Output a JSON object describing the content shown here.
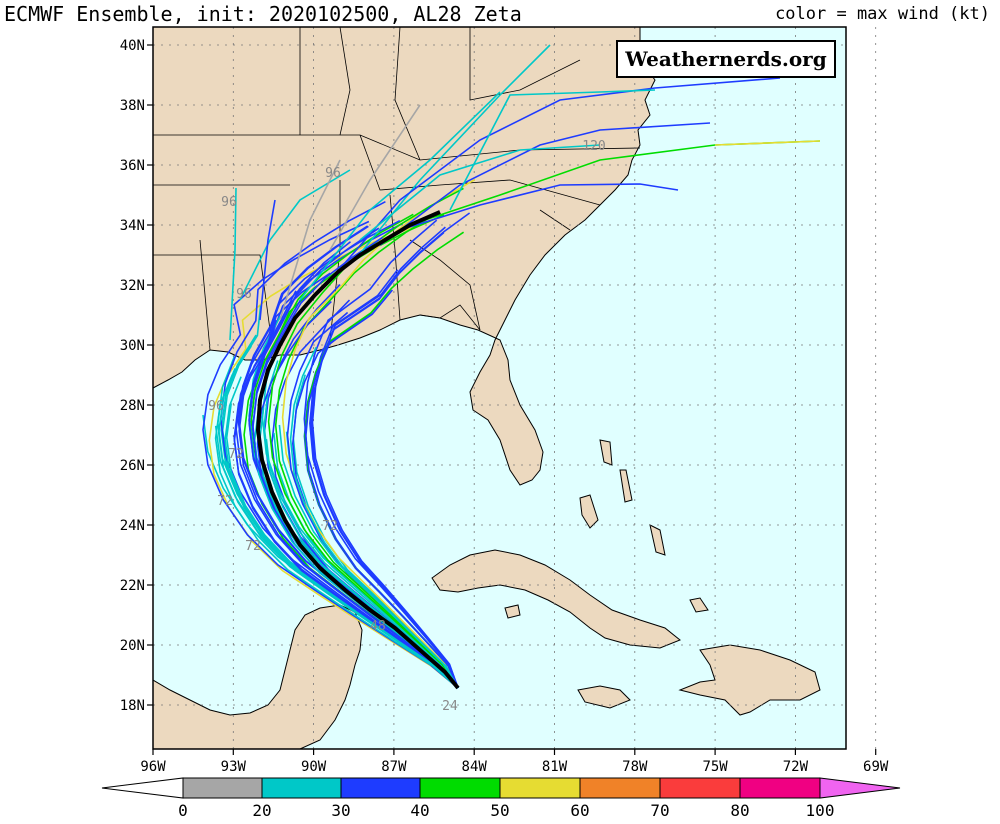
{
  "header": {
    "title": "ECMWF Ensemble, init: 2020102500, AL28 Zeta",
    "legend_note": "color = max wind (kt)"
  },
  "watermark": "Weathernerds.org",
  "map": {
    "lat_labels": [
      "40N",
      "38N",
      "36N",
      "34N",
      "32N",
      "30N",
      "28N",
      "26N",
      "24N",
      "22N",
      "20N",
      "18N"
    ],
    "lon_labels": [
      "96W",
      "93W",
      "90W",
      "87W",
      "84W",
      "81W",
      "78W",
      "75W",
      "72W",
      "69W"
    ],
    "land_color": "#ecd9bf",
    "ocean_color": "#e0ffff",
    "hour_markers": [
      "120",
      "96",
      "96",
      "96",
      "96",
      "72",
      "72",
      "72",
      "72",
      "48",
      "24"
    ]
  },
  "colorbar": {
    "labels": [
      "0",
      "20",
      "30",
      "40",
      "50",
      "60",
      "70",
      "80",
      "100"
    ],
    "colors": [
      "#ffffff",
      "#a6a6a6",
      "#00c8c8",
      "#1e3cff",
      "#00dc00",
      "#e6dc32",
      "#f08228",
      "#fa3c3c",
      "#f00082",
      "#f064f0"
    ]
  },
  "tracks": {
    "mean_color": "#000000",
    "member_colors": [
      "#00c8c8",
      "#1e3cff",
      "#00dc00",
      "#e6dc32",
      "#a6a6a6"
    ]
  }
}
